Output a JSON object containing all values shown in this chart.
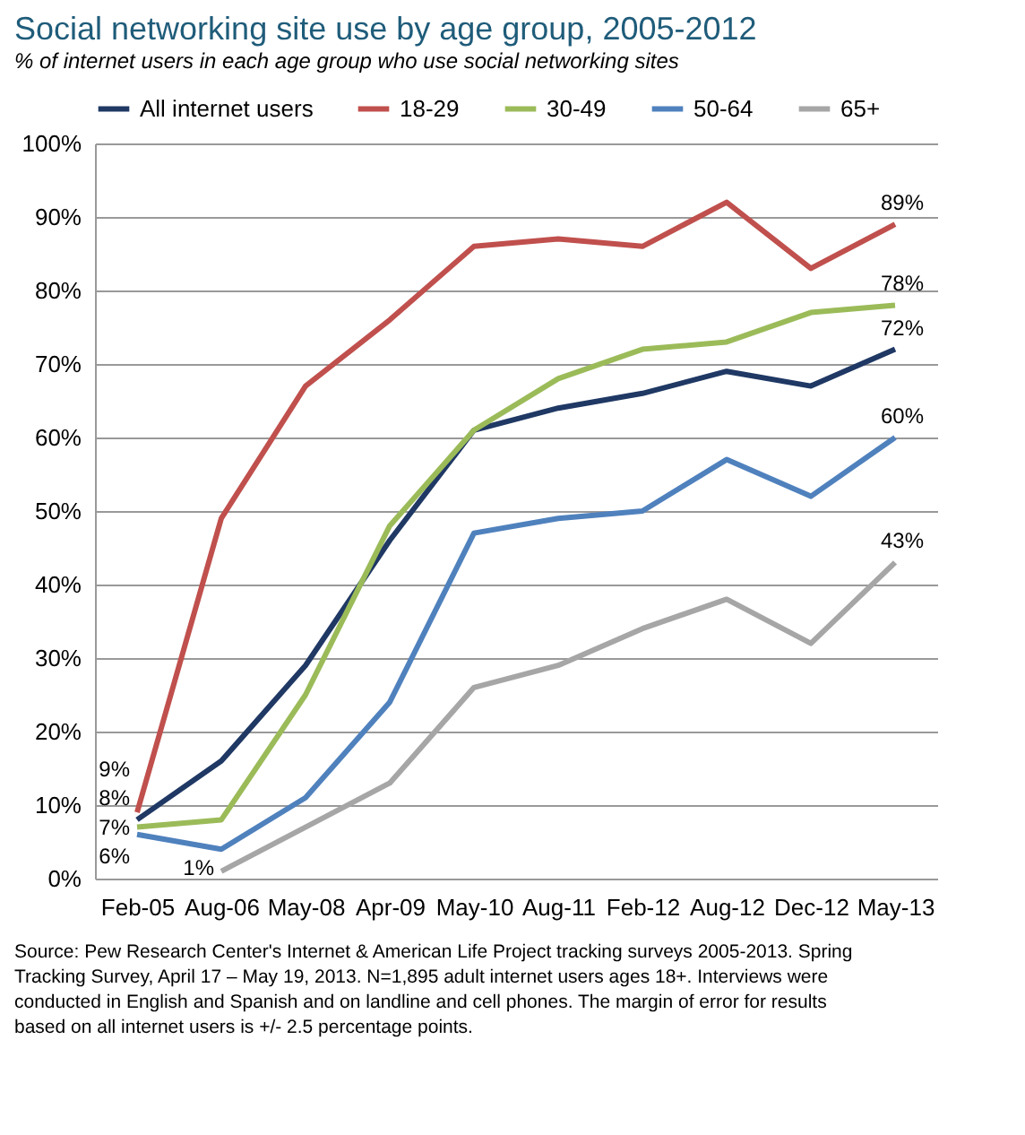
{
  "chart_data": {
    "type": "line",
    "title": "Social networking site use by age group, 2005-2012",
    "subtitle": "% of internet users in each age group who use social networking sites",
    "categories": [
      "Feb-05",
      "Aug-06",
      "May-08",
      "Apr-09",
      "May-10",
      "Aug-11",
      "Feb-12",
      "Aug-12",
      "Dec-12",
      "May-13"
    ],
    "series": [
      {
        "name": "All internet users",
        "color": "#1f3864",
        "values": [
          8,
          16,
          29,
          46,
          61,
          64,
          66,
          69,
          67,
          72
        ],
        "value_labels": [
          "8%",
          null,
          null,
          null,
          null,
          null,
          null,
          null,
          null,
          "72%"
        ]
      },
      {
        "name": "18-29",
        "color": "#c0504d",
        "values": [
          9,
          49,
          67,
          76,
          86,
          87,
          86,
          92,
          83,
          89
        ],
        "value_labels": [
          "9%",
          null,
          null,
          null,
          null,
          null,
          null,
          null,
          null,
          "89%"
        ]
      },
      {
        "name": "30-49",
        "color": "#9bbb59",
        "values": [
          7,
          8,
          25,
          48,
          61,
          68,
          72,
          73,
          77,
          78
        ],
        "value_labels": [
          "7%",
          null,
          null,
          null,
          null,
          null,
          null,
          null,
          null,
          "78%"
        ]
      },
      {
        "name": "50-64",
        "color": "#4f81bd",
        "values": [
          6,
          4,
          11,
          24,
          47,
          49,
          50,
          57,
          52,
          60
        ],
        "value_labels": [
          "6%",
          null,
          null,
          null,
          null,
          null,
          null,
          null,
          null,
          "60%"
        ]
      },
      {
        "name": "65+",
        "color": "#a6a6a6",
        "values": [
          null,
          1,
          7,
          13,
          26,
          29,
          34,
          38,
          32,
          43
        ],
        "value_labels": [
          null,
          "1%",
          null,
          null,
          null,
          null,
          null,
          null,
          null,
          "43%"
        ]
      }
    ],
    "ylim": [
      0,
      100
    ],
    "yticks": [
      {
        "value": 0,
        "label": "0%"
      },
      {
        "value": 10,
        "label": "10%"
      },
      {
        "value": 20,
        "label": "20%"
      },
      {
        "value": 30,
        "label": "30%"
      },
      {
        "value": 40,
        "label": "40%"
      },
      {
        "value": 50,
        "label": "50%"
      },
      {
        "value": 60,
        "label": "60%"
      },
      {
        "value": 70,
        "label": "70%"
      },
      {
        "value": 80,
        "label": "80%"
      },
      {
        "value": 90,
        "label": "90%"
      },
      {
        "value": 100,
        "label": "100%"
      }
    ],
    "grid": "y",
    "legend": "top",
    "marker": "none",
    "line_style": "solid",
    "annotations": [
      "Source: Pew Research Center's Internet & American Life Project tracking surveys 2005-2013. Spring Tracking Survey, April 17 – May 19, 2013. N=1,895 adult internet users ages 18+. Interviews were conducted in English and Spanish and on landline and cell phones.  The margin of error for results based on all internet users is +/- 2.5 percentage points."
    ]
  }
}
